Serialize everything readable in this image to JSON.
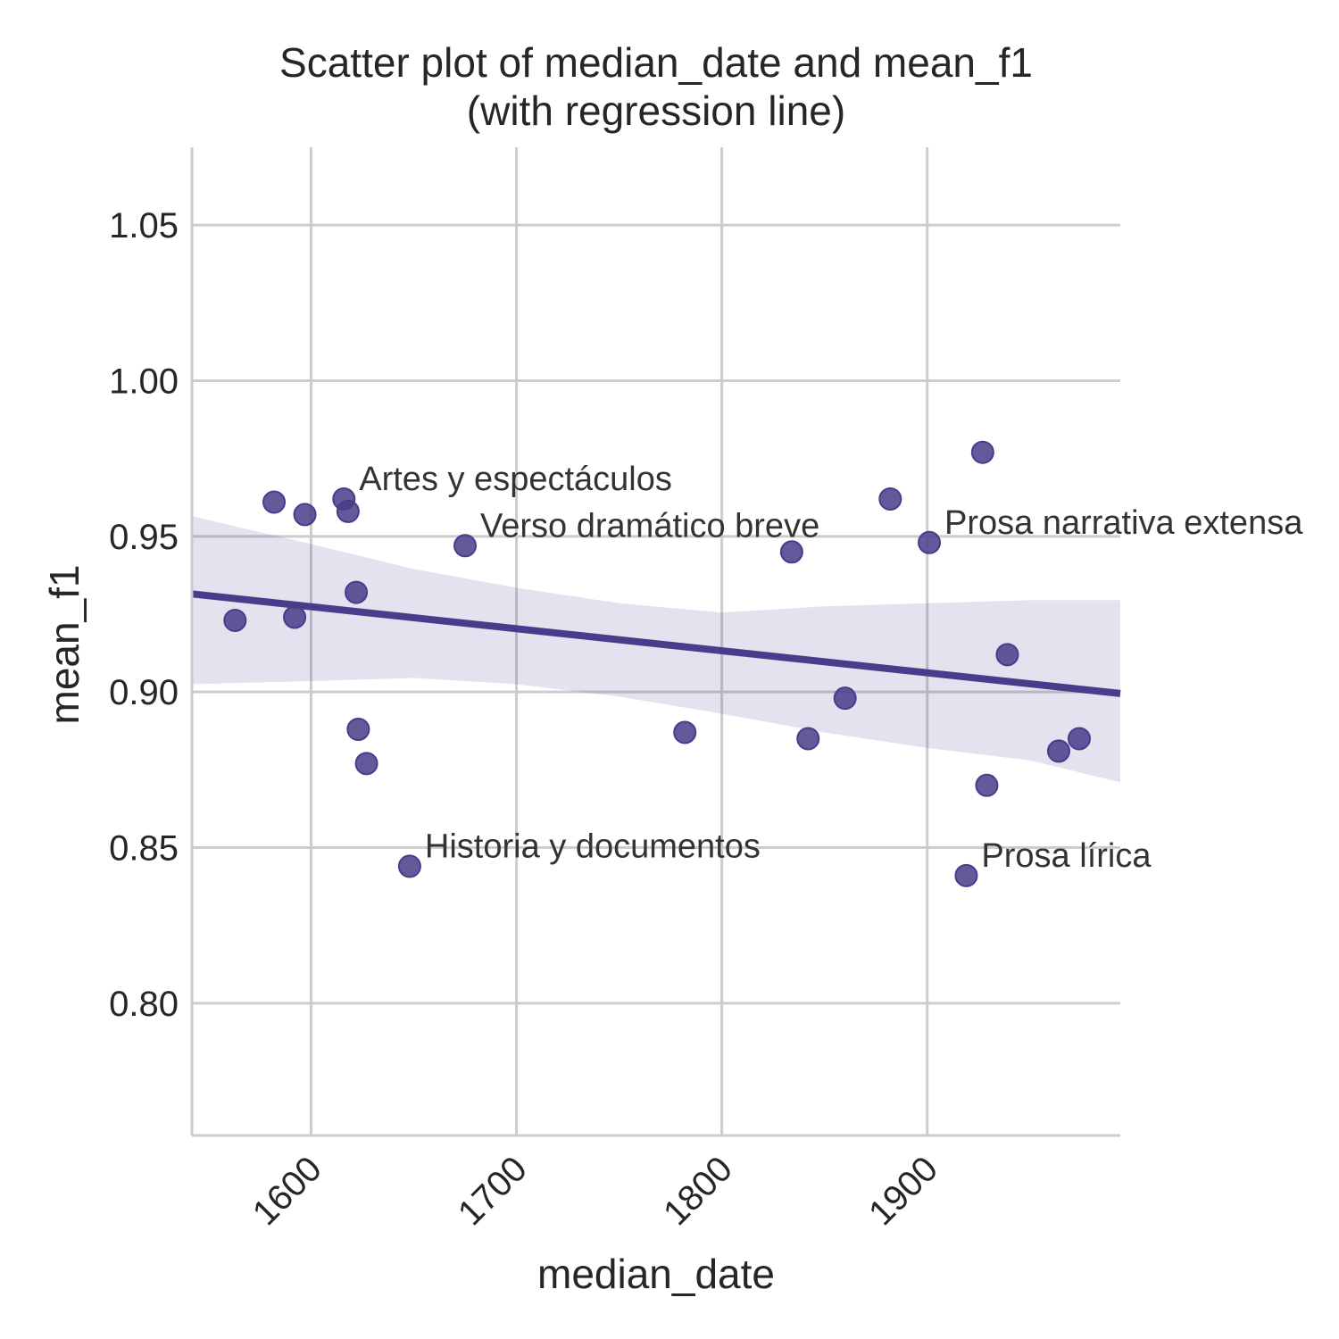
{
  "chart_data": {
    "type": "scatter",
    "title": "Scatter plot of median_date and mean_f1",
    "subtitle": "(with regression line)",
    "xlabel": "median_date",
    "ylabel": "mean_f1",
    "xlim": [
      1542,
      1994
    ],
    "ylim": [
      0.7575,
      1.075
    ],
    "xticks": [
      1600,
      1700,
      1800,
      1900
    ],
    "yticks": [
      0.8,
      0.85,
      0.9,
      0.95,
      1.0,
      1.05
    ],
    "xtick_labels": [
      "1600",
      "1700",
      "1800",
      "1900"
    ],
    "ytick_labels": [
      "0.80",
      "0.85",
      "0.90",
      "0.95",
      "1.00",
      "1.05"
    ],
    "grid": true,
    "colors": {
      "points": "#483d8b",
      "line": "#483d8b",
      "band": "#483d8b"
    },
    "points": [
      {
        "x": 1563,
        "y": 0.923
      },
      {
        "x": 1582,
        "y": 0.961
      },
      {
        "x": 1592,
        "y": 0.924
      },
      {
        "x": 1597,
        "y": 0.957
      },
      {
        "x": 1616,
        "y": 0.962
      },
      {
        "x": 1618,
        "y": 0.958
      },
      {
        "x": 1622,
        "y": 0.932
      },
      {
        "x": 1623,
        "y": 0.888
      },
      {
        "x": 1627,
        "y": 0.877
      },
      {
        "x": 1648,
        "y": 0.844
      },
      {
        "x": 1675,
        "y": 0.947
      },
      {
        "x": 1782,
        "y": 0.887
      },
      {
        "x": 1834,
        "y": 0.945
      },
      {
        "x": 1842,
        "y": 0.885
      },
      {
        "x": 1860,
        "y": 0.898
      },
      {
        "x": 1882,
        "y": 0.962
      },
      {
        "x": 1901,
        "y": 0.948
      },
      {
        "x": 1919,
        "y": 0.841
      },
      {
        "x": 1927,
        "y": 0.977
      },
      {
        "x": 1929,
        "y": 0.87
      },
      {
        "x": 1939,
        "y": 0.912
      },
      {
        "x": 1964,
        "y": 0.881
      },
      {
        "x": 1974,
        "y": 0.885
      }
    ],
    "regression": {
      "x": [
        1542,
        1994
      ],
      "y": [
        0.9315,
        0.8995
      ]
    },
    "confidence_band": {
      "x": [
        1542,
        1600,
        1650,
        1700,
        1750,
        1800,
        1850,
        1900,
        1950,
        1994
      ],
      "upper": [
        0.9565,
        0.9475,
        0.9395,
        0.9335,
        0.9285,
        0.9255,
        0.9275,
        0.9285,
        0.9295,
        0.9295
      ],
      "lower": [
        0.9025,
        0.9035,
        0.9045,
        0.9025,
        0.8985,
        0.893,
        0.887,
        0.882,
        0.878,
        0.871
      ]
    },
    "annotations": [
      {
        "text": "Artes y espectáculos",
        "x": 1616,
        "y": 0.962
      },
      {
        "text": "Verso dramático breve",
        "x": 1675,
        "y": 0.947
      },
      {
        "text": "Prosa narrativa extensa",
        "x": 1901,
        "y": 0.948
      },
      {
        "text": "Historia y documentos",
        "x": 1648,
        "y": 0.844
      },
      {
        "text": "Prosa lírica",
        "x": 1919,
        "y": 0.841
      }
    ]
  }
}
